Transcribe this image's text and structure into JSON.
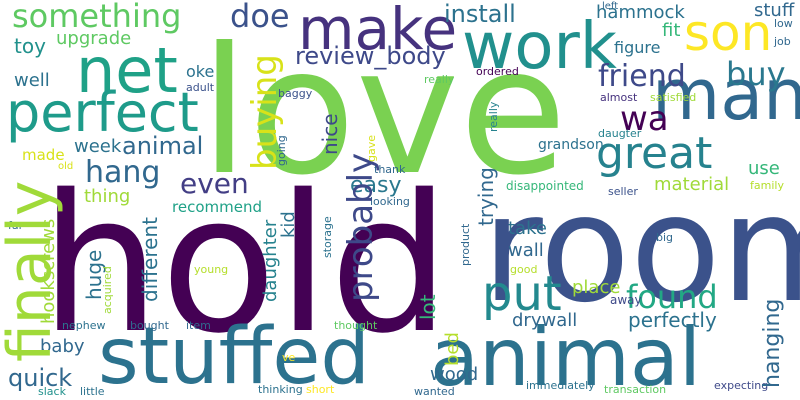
{
  "palette": {
    "deep_purple": "#440154",
    "indigo": "#46327e",
    "blue": "#365c8d",
    "steel_blue": "#277f8e",
    "teal": "#1fa187",
    "green": "#4ac16d",
    "lime": "#a0da39",
    "yellow": "#fde725",
    "background": "#ffffff"
  },
  "words": {
    "love": "love",
    "room": "room",
    "hold": "hold",
    "stuffed": "stuffed",
    "animal": "animal",
    "work": "work",
    "make": "make",
    "net": "net",
    "perfect": "perfect",
    "many": "many",
    "great": "great",
    "son": "son",
    "put": "put",
    "found": "found",
    "friend": "friend",
    "buy": "buy",
    "something": "something",
    "doe": "doe",
    "review_body": "review_body",
    "install": "install",
    "wa": "wa",
    "even": "even",
    "hang": "hang",
    "animal_small": "animal",
    "easy": "easy",
    "toy": "toy",
    "upgrade": "upgrade",
    "well": "well",
    "week": "week",
    "made": "made",
    "thing": "thing",
    "recommend": "recommend",
    "hammock": "hammock",
    "fit": "fit",
    "figure": "figure",
    "stuff": "stuff",
    "oke": "oke",
    "adult": "adult",
    "baggy": "baggy",
    "ordered": "ordered",
    "really": "really",
    "almost": "almost",
    "satisfied": "satisfied",
    "grandson": "grandson",
    "daugter": "daugter",
    "use": "use",
    "material": "material",
    "disappointed": "disappointed",
    "seller": "seller",
    "family": "family",
    "thank": "thank",
    "looking": "looking",
    "take": "take",
    "wall": "wall",
    "good": "good",
    "big": "big",
    "place": "place",
    "away": "away",
    "perfectly": "perfectly",
    "drywall": "drywall",
    "baby": "baby",
    "quick": "quick",
    "wood": "wood",
    "young": "young",
    "far": "far",
    "nephew": "nephew",
    "bought": "bought",
    "item": "item",
    "thought": "thought",
    "ve": "ve",
    "short": "short",
    "thinking": "thinking",
    "slack": "slack",
    "little": "little",
    "wanted": "wanted",
    "immediately": "immediately",
    "transaction": "transaction",
    "expecting": "expecting",
    "job": "job",
    "left": "left",
    "old": "old",
    "low": "low",
    "finally": "finally",
    "buying": "buying",
    "probably": "probably",
    "lot": "lot",
    "nice": "nice",
    "trying": "trying",
    "huge": "huge",
    "hookscrews": "hookscrews",
    "different": "different",
    "kid": "kid",
    "daughter": "daughter",
    "hanging": "hanging",
    "bed": "bed",
    "acquired": "acquired",
    "storage": "storage",
    "product": "product",
    "gave": "gave",
    "going": "going",
    "really_small": "really"
  }
}
